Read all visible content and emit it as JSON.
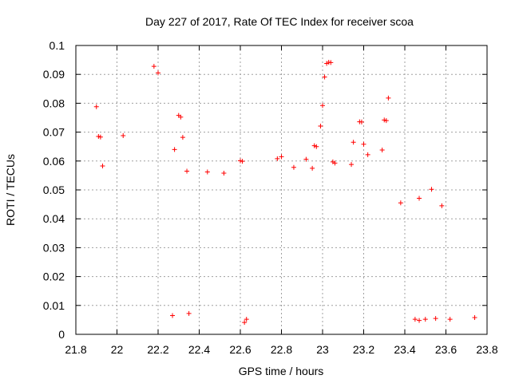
{
  "chart_data": {
    "type": "scatter",
    "title": "Day 227 of 2017, Rate Of TEC Index for receiver scoa",
    "xlabel": "GPS time / hours",
    "ylabel": "ROTI / TECUs",
    "xlim": [
      21.8,
      23.8
    ],
    "ylim": [
      0,
      0.1
    ],
    "x_ticks": [
      21.8,
      22,
      22.2,
      22.4,
      22.6,
      22.8,
      23,
      23.2,
      23.4,
      23.6,
      23.8
    ],
    "x_tick_labels": [
      "21.8",
      "22",
      "22.2",
      "22.4",
      "22.6",
      "22.8",
      "23",
      "23.2",
      "23.4",
      "23.6",
      "23.8"
    ],
    "y_ticks": [
      0,
      0.01,
      0.02,
      0.03,
      0.04,
      0.05,
      0.06,
      0.07,
      0.08,
      0.09,
      0.1
    ],
    "y_tick_labels": [
      "0",
      "0.01",
      "0.02",
      "0.03",
      "0.04",
      "0.05",
      "0.06",
      "0.07",
      "0.08",
      "0.09",
      "0.1"
    ],
    "grid": true,
    "marker": "plus",
    "color": "#ff0000",
    "points": [
      [
        21.9,
        0.0788
      ],
      [
        21.91,
        0.0685
      ],
      [
        21.92,
        0.0683
      ],
      [
        21.93,
        0.0583
      ],
      [
        22.03,
        0.0688
      ],
      [
        22.18,
        0.0928
      ],
      [
        22.2,
        0.0905
      ],
      [
        22.28,
        0.064
      ],
      [
        22.3,
        0.0758
      ],
      [
        22.31,
        0.0752
      ],
      [
        22.32,
        0.0682
      ],
      [
        23.0,
        0.0792
      ],
      [
        23.01,
        0.0891
      ],
      [
        23.02,
        0.0938
      ],
      [
        23.03,
        0.0942
      ],
      [
        23.04,
        0.0941
      ],
      [
        22.99,
        0.0721
      ],
      [
        23.18,
        0.0736
      ],
      [
        23.19,
        0.0735
      ],
      [
        23.3,
        0.0742
      ],
      [
        23.31,
        0.074
      ],
      [
        23.32,
        0.0818
      ],
      [
        23.15,
        0.0665
      ],
      [
        23.2,
        0.0658
      ],
      [
        23.22,
        0.0622
      ],
      [
        23.29,
        0.0638
      ],
      [
        22.6,
        0.0601
      ],
      [
        22.61,
        0.0599
      ],
      [
        22.78,
        0.0608
      ],
      [
        22.8,
        0.0615
      ],
      [
        22.92,
        0.0606
      ],
      [
        22.96,
        0.0653
      ],
      [
        22.97,
        0.065
      ],
      [
        23.05,
        0.0597
      ],
      [
        23.06,
        0.0593
      ],
      [
        23.14,
        0.0588
      ],
      [
        22.52,
        0.0558
      ],
      [
        22.44,
        0.0562
      ],
      [
        22.34,
        0.0565
      ],
      [
        22.86,
        0.0578
      ],
      [
        22.95,
        0.0575
      ],
      [
        23.53,
        0.0502
      ],
      [
        23.47,
        0.0471
      ],
      [
        23.38,
        0.0455
      ],
      [
        23.58,
        0.0445
      ],
      [
        22.62,
        0.0041
      ],
      [
        22.63,
        0.0052
      ],
      [
        23.45,
        0.0052
      ],
      [
        23.47,
        0.0048
      ],
      [
        23.5,
        0.0052
      ],
      [
        23.55,
        0.0055
      ],
      [
        23.62,
        0.0052
      ],
      [
        23.74,
        0.0058
      ],
      [
        22.27,
        0.0065
      ],
      [
        22.35,
        0.0072
      ]
    ]
  }
}
